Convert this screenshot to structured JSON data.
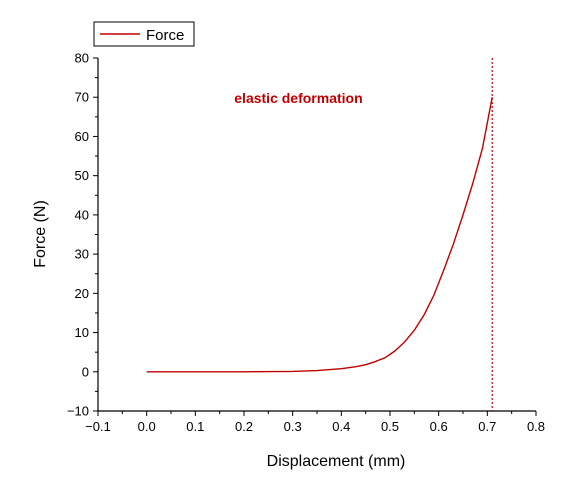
{
  "chart_data": {
    "type": "line",
    "title": "",
    "xlabel": "Displacement (mm)",
    "ylabel": "Force (N)",
    "xlim": [
      -0.1,
      0.8
    ],
    "ylim": [
      -10,
      80
    ],
    "xticks": [
      -0.1,
      0.0,
      0.1,
      0.2,
      0.3,
      0.4,
      0.5,
      0.6,
      0.7,
      0.8
    ],
    "xtick_labels": [
      "−0.1",
      "0.0",
      "0.1",
      "0.2",
      "0.3",
      "0.4",
      "0.5",
      "0.6",
      "0.7",
      "0.8"
    ],
    "yticks": [
      -10,
      0,
      10,
      20,
      30,
      40,
      50,
      60,
      70,
      80
    ],
    "ytick_labels": [
      "−10",
      "0",
      "10",
      "20",
      "30",
      "40",
      "50",
      "60",
      "70",
      "80"
    ],
    "grid": false,
    "legend_position": "top-left",
    "series": [
      {
        "name": "Force",
        "color": "#c00000",
        "x": [
          0.0,
          0.1,
          0.2,
          0.3,
          0.35,
          0.4,
          0.43,
          0.45,
          0.47,
          0.49,
          0.51,
          0.53,
          0.55,
          0.57,
          0.59,
          0.61,
          0.63,
          0.65,
          0.67,
          0.69,
          0.71
        ],
        "y": [
          0,
          0,
          0,
          0.1,
          0.3,
          0.8,
          1.3,
          1.8,
          2.6,
          3.6,
          5.3,
          7.6,
          10.6,
          14.5,
          19.5,
          25.8,
          32.5,
          40.0,
          48.0,
          57.0,
          70.0
        ]
      }
    ],
    "vlines": [
      {
        "x": 0.71,
        "color": "#c00000",
        "style": "dotted"
      }
    ],
    "annotations": [
      {
        "text": "elastic deformation",
        "x": 0.18,
        "y": 68.5,
        "color": "#c00000"
      }
    ]
  }
}
